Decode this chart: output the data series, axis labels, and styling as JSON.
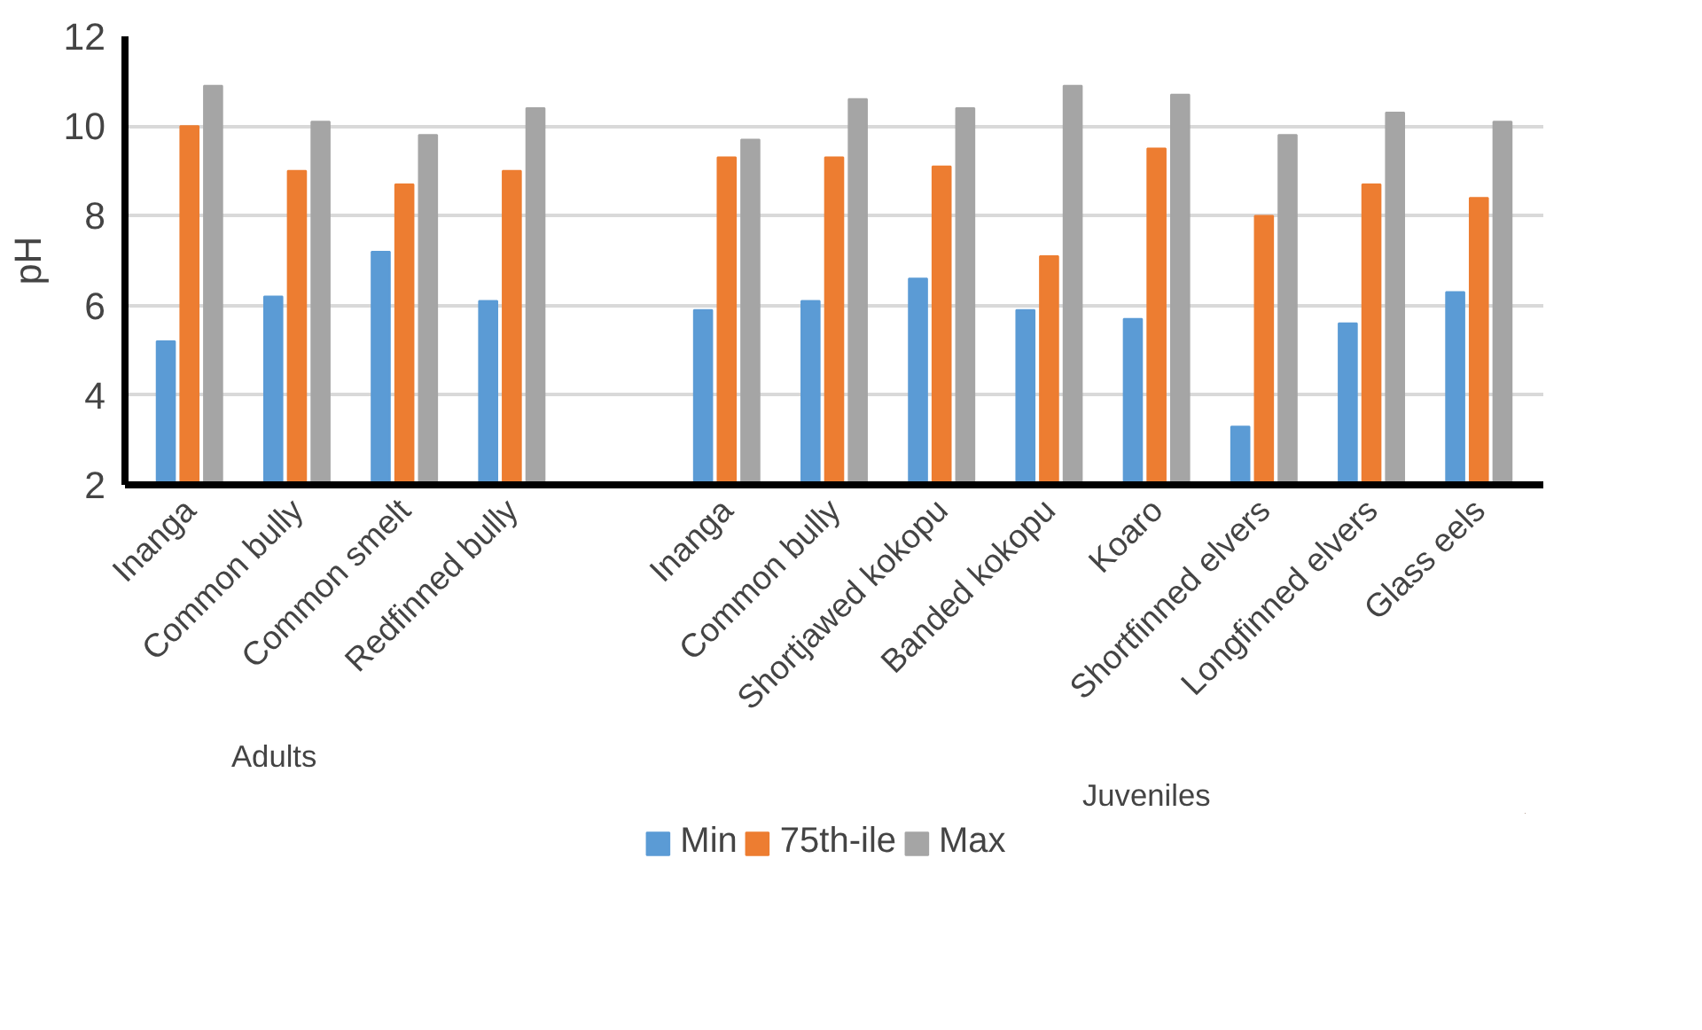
{
  "chart_data": {
    "type": "bar",
    "ylabel": "pH",
    "categories": [
      "Inanga",
      "Common bully",
      "Common smelt",
      "Redfinned bully",
      null,
      "Inanga",
      "Common bully",
      "Shortjawed kokopu",
      "Banded kokopu",
      "Koaro",
      "Shortfinned elvers",
      "Longfinned elvers",
      "Glass eels"
    ],
    "series": [
      {
        "name": "Min",
        "color": "#5b9bd5",
        "values": [
          5.2,
          6.2,
          7.2,
          6.1,
          null,
          5.9,
          6.1,
          6.6,
          5.9,
          5.7,
          3.3,
          5.6,
          6.3
        ]
      },
      {
        "name": "75th-ile",
        "color": "#ed7d31",
        "values": [
          10.0,
          9.0,
          8.7,
          9.0,
          null,
          9.3,
          9.3,
          9.1,
          7.1,
          9.5,
          8.0,
          8.7,
          8.4
        ]
      },
      {
        "name": "Max",
        "color": "#a5a5a5",
        "values": [
          10.9,
          10.1,
          9.8,
          10.4,
          null,
          9.7,
          10.6,
          10.4,
          10.9,
          10.7,
          9.8,
          10.3,
          10.1
        ]
      }
    ],
    "ylim": [
      2,
      12
    ],
    "yticks": [
      2,
      4,
      6,
      8,
      10,
      12
    ],
    "grid": "y",
    "legend": "bottom",
    "annotations": [
      "Adults",
      "Juveniles"
    ]
  }
}
